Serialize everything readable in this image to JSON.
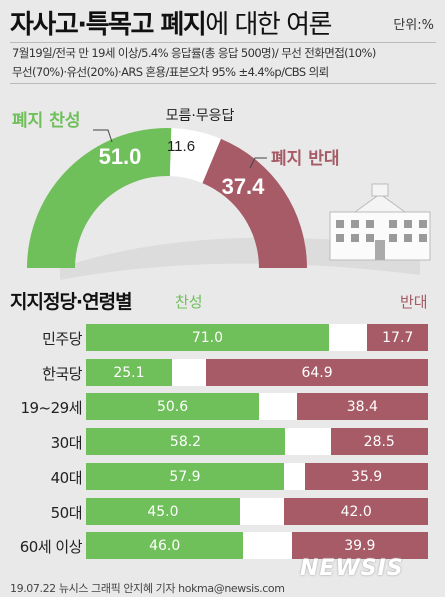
{
  "header": {
    "title_bold": "자사고·특목고 폐지",
    "title_light": "에 대한 여론",
    "unit": "단위:%"
  },
  "method": {
    "line1": "7월19일/전국 만 19세 이상/5.4% 응답률(총 응답 500명)/ 무선 전화면접(10%)",
    "line2": "무선(70%)·유선(20%)·ARS 혼용/표본오차 95% ±4.4%p/CBS 의뢰"
  },
  "colors": {
    "yes": "#6fbf5a",
    "no": "#a65b66",
    "neutral": "#ffffff",
    "background": "#e9e9e9"
  },
  "chart_data": [
    {
      "type": "pie",
      "subtype": "half-donut gauge",
      "labels": [
        "폐지 찬성",
        "모름·무응답",
        "폐지 반대"
      ],
      "values": [
        51.0,
        11.6,
        37.4
      ],
      "value_labels": [
        "51.0",
        "11.6",
        "37.4"
      ],
      "neutral_label": "모름·무응답",
      "illustration": "school-building"
    },
    {
      "type": "bar",
      "subtype": "stacked-horizontal",
      "title": "지지정당·연령별",
      "categories": [
        "민주당",
        "한국당",
        "19~29세",
        "30대",
        "40대",
        "50대",
        "60세 이상"
      ],
      "series": [
        {
          "name": "찬성",
          "values": [
            71.0,
            25.1,
            50.6,
            58.2,
            57.9,
            45.0,
            46.0
          ],
          "labels": [
            "71.0",
            "25.1",
            "50.6",
            "58.2",
            "57.9",
            "45.0",
            "46.0"
          ]
        },
        {
          "name": "반대",
          "values": [
            17.7,
            64.9,
            38.4,
            28.5,
            35.9,
            42.0,
            39.9
          ],
          "labels": [
            "17.7",
            "64.9",
            "38.4",
            "28.5",
            "35.9",
            "42.0",
            "39.9"
          ]
        }
      ],
      "xlim": [
        0,
        100
      ]
    }
  ],
  "footer": {
    "credit": "19.07.22 뉴시스 그래픽 안지혜 기자 hokma@newsis.com",
    "watermark": "NEWSIS"
  }
}
